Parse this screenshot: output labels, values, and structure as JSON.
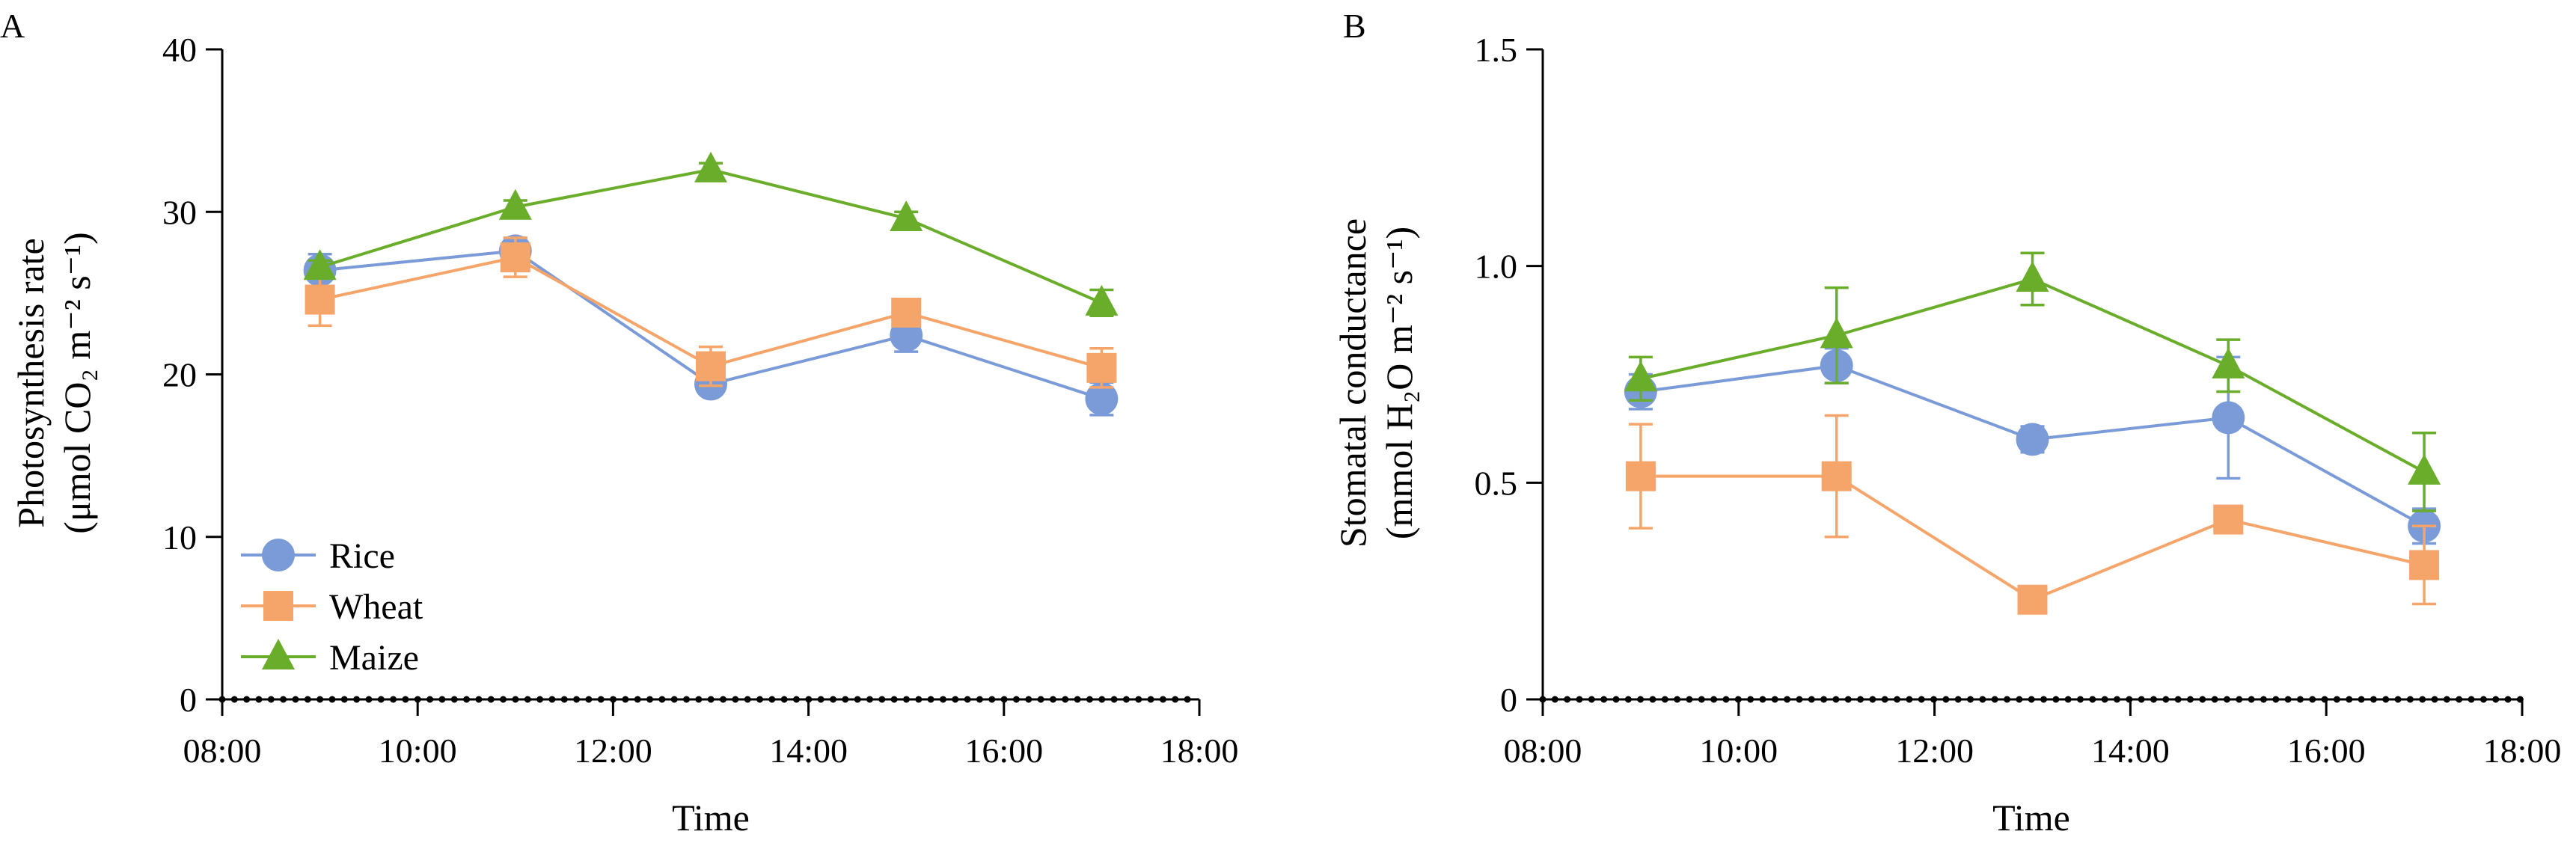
{
  "figure": {
    "legend": {
      "position": "bottom-left of panel A"
    }
  },
  "series_style": [
    {
      "name": "Rice",
      "color": "#7b9bd8",
      "marker": "circle"
    },
    {
      "name": "Wheat",
      "color": "#f5a46a",
      "marker": "square"
    },
    {
      "name": "Maize",
      "color": "#6aad2a",
      "marker": "triangle"
    }
  ],
  "chart_data": [
    {
      "panel": "A",
      "type": "line",
      "xlabel": "Time",
      "ylabel": [
        "Photosynthesis rate",
        "(μmol CO₂ m⁻² s⁻¹)"
      ],
      "x_ticks": [
        "08:00",
        "10:00",
        "12:00",
        "14:00",
        "16:00",
        "18:00"
      ],
      "xlim": [
        "08:00",
        "18:00"
      ],
      "y_ticks": [
        "0",
        "10",
        "20",
        "30",
        "40"
      ],
      "ylim": [
        0,
        40
      ],
      "grid": false,
      "x": [
        "09:00",
        "11:00",
        "13:00",
        "15:00",
        "17:00"
      ],
      "series": [
        {
          "name": "Rice",
          "values": [
            26.4,
            27.6,
            19.4,
            22.4,
            18.5
          ],
          "error": [
            1.0,
            0.8,
            0.5,
            1.0,
            1.0
          ]
        },
        {
          "name": "Wheat",
          "values": [
            24.6,
            27.2,
            20.5,
            23.8,
            20.4
          ],
          "error": [
            1.6,
            1.2,
            1.2,
            0.6,
            1.2
          ]
        },
        {
          "name": "Maize",
          "values": [
            26.6,
            30.3,
            32.6,
            29.6,
            24.4
          ],
          "error": [
            0.4,
            0.4,
            0.4,
            0.4,
            0.8
          ]
        }
      ]
    },
    {
      "panel": "B",
      "type": "line",
      "xlabel": "Time",
      "ylabel": [
        "Stomatal conductance",
        "(mmol H₂O m⁻² s⁻¹)"
      ],
      "x_ticks": [
        "08:00",
        "10:00",
        "12:00",
        "14:00",
        "16:00",
        "18:00"
      ],
      "xlim": [
        "08:00",
        "18:00"
      ],
      "y_ticks": [
        "0",
        "0.5",
        "1.0",
        "1.5"
      ],
      "ylim": [
        0,
        1.5
      ],
      "grid": false,
      "x": [
        "09:00",
        "11:00",
        "13:00",
        "15:00",
        "17:00"
      ],
      "series": [
        {
          "name": "Rice",
          "values": [
            0.71,
            0.77,
            0.6,
            0.65,
            0.4
          ],
          "error": [
            0.04,
            0.04,
            0.03,
            0.14,
            0.04
          ]
        },
        {
          "name": "Wheat",
          "values": [
            0.515,
            0.515,
            0.23,
            0.415,
            0.31
          ],
          "error": [
            0.12,
            0.14,
            0.02,
            0.02,
            0.09
          ]
        },
        {
          "name": "Maize",
          "values": [
            0.74,
            0.84,
            0.97,
            0.77,
            0.525
          ],
          "error": [
            0.05,
            0.11,
            0.06,
            0.06,
            0.09
          ]
        }
      ]
    }
  ]
}
